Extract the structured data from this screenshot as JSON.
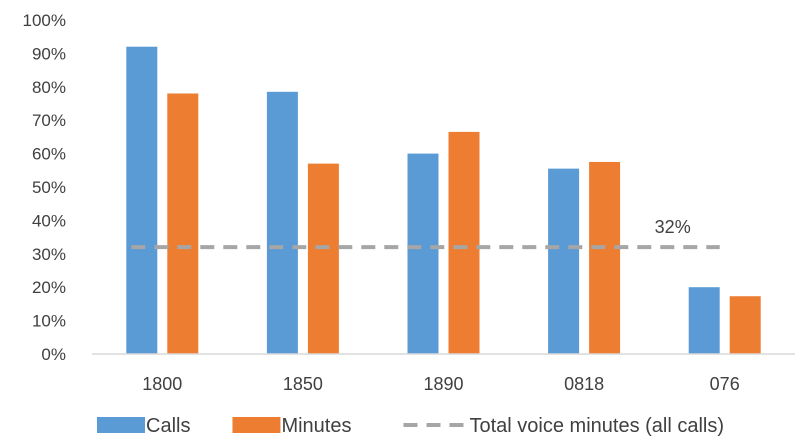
{
  "chart_data": {
    "type": "bar",
    "categories": [
      "1800",
      "1850",
      "1890",
      "0818",
      "076"
    ],
    "series": [
      {
        "name": "Calls",
        "values": [
          92,
          78.5,
          60,
          55.5,
          20
        ],
        "color": "#5b9bd5"
      },
      {
        "name": "Minutes",
        "values": [
          78,
          57,
          66.5,
          57.5,
          17.3
        ],
        "color": "#ed7d31"
      }
    ],
    "reference_line": {
      "name": "Total voice minutes (all calls)",
      "value": 32,
      "label": "32%",
      "color": "#a6a6a6",
      "style": "dashed"
    },
    "y_ticks": [
      "0%",
      "10%",
      "20%",
      "30%",
      "40%",
      "50%",
      "60%",
      "70%",
      "80%",
      "90%",
      "100%"
    ],
    "ylim": [
      0,
      100
    ],
    "grid": false,
    "legend_position": "bottom"
  }
}
